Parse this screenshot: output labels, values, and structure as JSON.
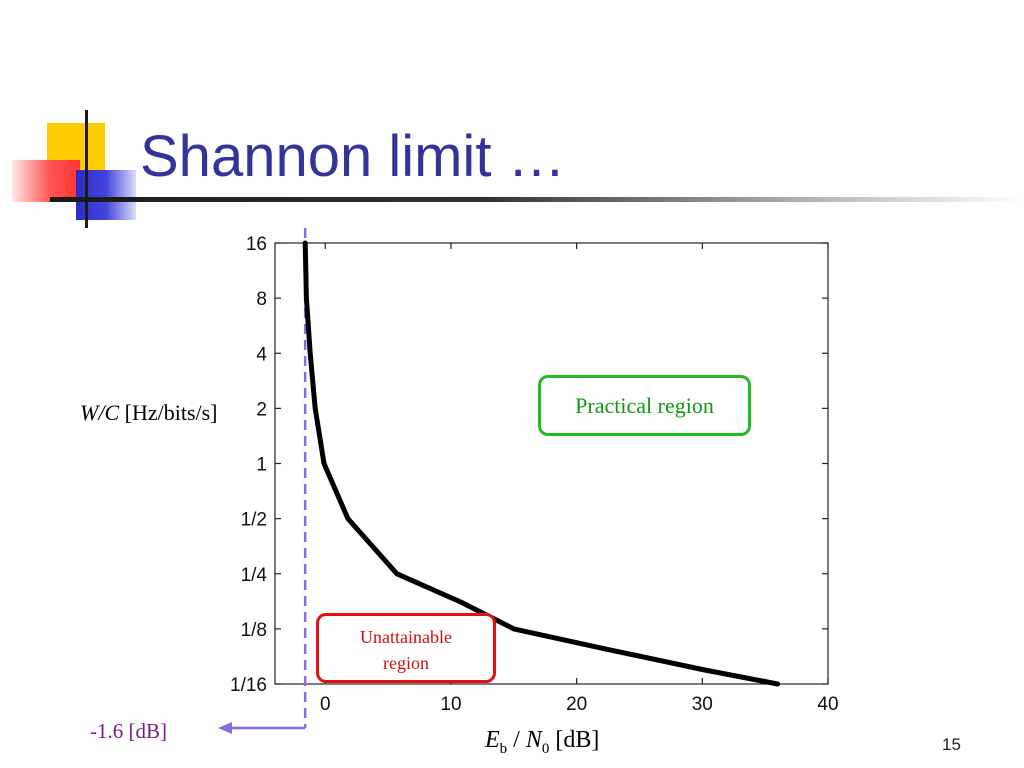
{
  "slide": {
    "title": "Shannon limit …",
    "page_number": "15"
  },
  "chart_data": {
    "type": "line",
    "xlabel": {
      "e": "E",
      "b": "b",
      "slash": " / ",
      "n": "N",
      "zero": "0",
      "unit": " [dB]"
    },
    "ylabel": {
      "var": "W/C",
      "unit": " [Hz/bits/s]"
    },
    "x_ticks": [
      0,
      10,
      20,
      30,
      40
    ],
    "y_ticks": [
      {
        "value": 0.0625,
        "label": "1/16"
      },
      {
        "value": 0.125,
        "label": "1/8"
      },
      {
        "value": 0.25,
        "label": "1/4"
      },
      {
        "value": 0.5,
        "label": "1/2"
      },
      {
        "value": 1,
        "label": "1"
      },
      {
        "value": 2,
        "label": "2"
      },
      {
        "value": 4,
        "label": "4"
      },
      {
        "value": 8,
        "label": "8"
      },
      {
        "value": 16,
        "label": "16"
      }
    ],
    "xlim": [
      -4,
      40
    ],
    "ylim": [
      0.0625,
      16
    ],
    "y_scale": "log2",
    "series": [
      {
        "points": [
          [
            -1.6,
            16
          ],
          [
            -1.5,
            8
          ],
          [
            -1.2,
            4
          ],
          [
            -0.8,
            2
          ],
          [
            -0.1,
            1
          ],
          [
            1.8,
            0.5
          ],
          [
            5.7,
            0.25
          ],
          [
            10.8,
            0.175
          ],
          [
            15,
            0.125
          ],
          [
            22,
            0.098
          ],
          [
            30,
            0.075
          ],
          [
            36,
            0.0625
          ]
        ],
        "color": "#000000"
      }
    ],
    "limit_line": {
      "x": -1.6,
      "color": "#8a6ae8",
      "style": "dashed"
    },
    "annotations": {
      "practical_region": "Practical region",
      "unattainable_line1": "Unattainable",
      "unattainable_line2": "region",
      "limit_callout": "-1.6 [dB]"
    },
    "colors": {
      "practical": "#22bb22",
      "unattainable": "#dd1111",
      "callout": "#7a1a8a"
    }
  }
}
